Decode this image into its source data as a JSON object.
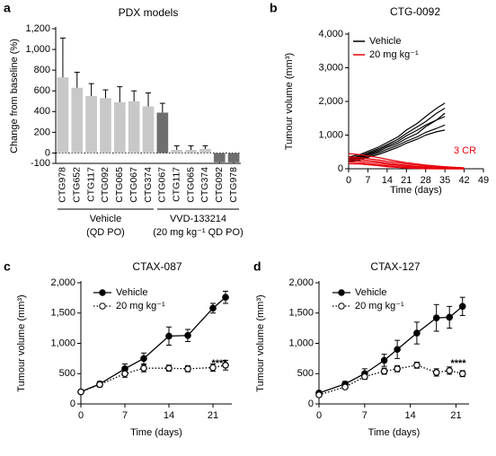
{
  "chart_data": [
    {
      "type": "bar",
      "panel": "a",
      "title": "PDX models",
      "ylabel": "Change from baseline (%)",
      "categories": [
        "CTG978",
        "CTG652",
        "CTG117",
        "CTG092",
        "CTG065",
        "CTG067",
        "CTG374",
        "CTG067",
        "CTG117",
        "CTG065",
        "CTG374",
        "CTG092",
        "CTG978"
      ],
      "values": [
        730,
        630,
        550,
        530,
        490,
        500,
        450,
        390,
        30,
        30,
        40,
        -90,
        -90
      ],
      "errors": [
        380,
        150,
        120,
        80,
        150,
        100,
        130,
        90,
        40,
        40,
        30,
        10,
        10
      ],
      "colors": [
        "#c8c8c8",
        "#c8c8c8",
        "#c8c8c8",
        "#c8c8c8",
        "#c8c8c8",
        "#c8c8c8",
        "#c8c8c8",
        "#6e6e6e",
        "#c8c8c8",
        "#c8c8c8",
        "#c8c8c8",
        "#6e6e6e",
        "#6e6e6e"
      ],
      "group_labels": [
        "Vehicle",
        "(QD PO)",
        "VVD-133214",
        "(20 mg kg⁻¹ QD PO)"
      ],
      "ylim": [
        -100,
        1200
      ],
      "yticks": [
        -100,
        0,
        200,
        400,
        600,
        800,
        {
          "value": 1000,
          "label": "1,000"
        },
        {
          "value": 1200,
          "label": "1,200"
        }
      ]
    },
    {
      "type": "multiline",
      "panel": "b",
      "title": "CTG-0092",
      "xlabel": "Time (days)",
      "ylabel": "Tumour volume (mm³)",
      "series": [
        {
          "name": "Vehicle",
          "color": "#000000",
          "lines": [
            {
              "x": [
                0,
                4,
                7,
                11,
                14,
                18,
                21,
                25,
                28,
                32,
                35
              ],
              "y": [
                350,
                420,
                520,
                650,
                780,
                950,
                1150,
                1350,
                1550,
                1800,
                1950
              ]
            },
            {
              "x": [
                0,
                4,
                7,
                11,
                14,
                18,
                21,
                25,
                28,
                32,
                35
              ],
              "y": [
                300,
                380,
                480,
                600,
                720,
                880,
                1050,
                1250,
                1400,
                1650,
                1800
              ]
            },
            {
              "x": [
                0,
                4,
                7,
                11,
                14,
                18,
                21,
                25,
                28,
                32,
                35
              ],
              "y": [
                280,
                350,
                440,
                560,
                680,
                820,
                980,
                1150,
                1300,
                1450,
                1550
              ]
            },
            {
              "x": [
                0,
                4,
                7,
                11,
                14,
                18,
                21,
                25,
                28,
                32,
                35
              ],
              "y": [
                250,
                320,
                420,
                520,
                640,
                760,
                900,
                1050,
                1250,
                1450,
                1650
              ]
            },
            {
              "x": [
                0,
                4,
                7,
                11,
                14,
                18,
                21,
                25,
                28,
                32,
                35
              ],
              "y": [
                220,
                300,
                380,
                480,
                580,
                700,
                820,
                950,
                1080,
                1200,
                1300
              ]
            },
            {
              "x": [
                0,
                4,
                7,
                11,
                14,
                18,
                21,
                25,
                28,
                32,
                35
              ],
              "y": [
                200,
                260,
                340,
                430,
                520,
                640,
                760,
                880,
                1000,
                1100,
                1150
              ]
            }
          ]
        },
        {
          "name": "20 mg kg⁻¹",
          "color": "#e8000b",
          "lines": [
            {
              "x": [
                0,
                4,
                7,
                11,
                14,
                18,
                21,
                25,
                28,
                32,
                35,
                39,
                42
              ],
              "y": [
                450,
                420,
                380,
                330,
                280,
                220,
                180,
                140,
                110,
                80,
                60,
                40,
                30
              ]
            },
            {
              "x": [
                0,
                4,
                7,
                11,
                14,
                18,
                21,
                25,
                28,
                32,
                35,
                39,
                42
              ],
              "y": [
                350,
                330,
                300,
                260,
                220,
                180,
                140,
                110,
                80,
                60,
                40,
                30,
                20
              ]
            },
            {
              "x": [
                0,
                4,
                7,
                11,
                14,
                18,
                21,
                25,
                28,
                32,
                35,
                39,
                42
              ],
              "y": [
                300,
                280,
                250,
                210,
                170,
                130,
                100,
                70,
                50,
                30,
                20,
                10,
                0
              ]
            },
            {
              "x": [
                0,
                4,
                7,
                11,
                14,
                18,
                21,
                25,
                28,
                32,
                35,
                39,
                42
              ],
              "y": [
                250,
                230,
                200,
                170,
                130,
                100,
                70,
                50,
                30,
                20,
                10,
                0,
                0
              ]
            },
            {
              "x": [
                0,
                4,
                7,
                11,
                14,
                18,
                21,
                25,
                28,
                32,
                35,
                39,
                42
              ],
              "y": [
                200,
                180,
                150,
                120,
                90,
                60,
                40,
                20,
                10,
                0,
                0,
                0,
                0
              ]
            },
            {
              "x": [
                0,
                4,
                7,
                11,
                14,
                18,
                21,
                25,
                28,
                32,
                35,
                39,
                42
              ],
              "y": [
                150,
                140,
                120,
                90,
                60,
                40,
                20,
                10,
                0,
                0,
                0,
                0,
                0
              ]
            }
          ]
        }
      ],
      "annotation": "3 CR",
      "xlim": [
        0,
        49
      ],
      "xticks": [
        0,
        7,
        14,
        21,
        28,
        35,
        42,
        49
      ],
      "ylim": [
        0,
        4000
      ],
      "yticks": [
        0,
        {
          "value": 1000,
          "label": "1,000"
        },
        {
          "value": 2000,
          "label": "2,000"
        },
        {
          "value": 3000,
          "label": "3,000"
        },
        {
          "value": 4000,
          "label": "4,000"
        }
      ]
    },
    {
      "type": "errorline",
      "panel": "c",
      "title": "CTAX-087",
      "xlabel": "Time (days)",
      "ylabel": "Tumour volume (mm³)",
      "series": [
        {
          "name": "Vehicle",
          "color": "#000000",
          "x": [
            0,
            3,
            7,
            10,
            14,
            17,
            21,
            23
          ],
          "values": [
            200,
            330,
            580,
            750,
            1120,
            1130,
            1580,
            1760
          ],
          "errors": [
            30,
            40,
            80,
            90,
            150,
            100,
            80,
            100
          ]
        },
        {
          "name": "20 mg kg⁻¹",
          "color": "#000000",
          "x": [
            0,
            3,
            7,
            10,
            14,
            17,
            21,
            23
          ],
          "values": [
            200,
            320,
            500,
            590,
            590,
            580,
            600,
            640
          ],
          "errors": [
            30,
            40,
            60,
            60,
            50,
            50,
            60,
            80
          ]
        }
      ],
      "annotation": "****",
      "xlim": [
        0,
        24
      ],
      "xticks": [
        0,
        7,
        14,
        21
      ],
      "ylim": [
        0,
        2000
      ],
      "yticks": [
        0,
        500,
        {
          "value": 1000,
          "label": "1,000"
        },
        {
          "value": 1500,
          "label": "1,500"
        },
        {
          "value": 2000,
          "label": "2,000"
        }
      ]
    },
    {
      "type": "errorline",
      "panel": "d",
      "title": "CTAX-127",
      "xlabel": "Time (days)",
      "ylabel": "Tumour volume (mm³)",
      "series": [
        {
          "name": "Vehicle",
          "color": "#000000",
          "x": [
            0,
            4,
            7,
            10,
            12,
            15,
            18,
            20,
            22
          ],
          "values": [
            180,
            330,
            500,
            720,
            900,
            1170,
            1420,
            1430,
            1610
          ],
          "errors": [
            30,
            40,
            80,
            100,
            150,
            180,
            220,
            180,
            150
          ]
        },
        {
          "name": "20 mg kg⁻¹",
          "color": "#000000",
          "x": [
            0,
            4,
            7,
            10,
            12,
            15,
            18,
            20,
            22
          ],
          "values": [
            150,
            280,
            450,
            540,
            580,
            640,
            520,
            550,
            500
          ],
          "errors": [
            20,
            30,
            40,
            50,
            50,
            50,
            60,
            60,
            50
          ]
        }
      ],
      "annotation": "****",
      "xlim": [
        0,
        23
      ],
      "xticks": [
        0,
        7,
        14,
        21
      ],
      "ylim": [
        0,
        2000
      ],
      "yticks": [
        0,
        500,
        {
          "value": 1000,
          "label": "1,000"
        },
        {
          "value": 1500,
          "label": "1,500"
        },
        {
          "value": 2000,
          "label": "2,000"
        }
      ]
    }
  ]
}
